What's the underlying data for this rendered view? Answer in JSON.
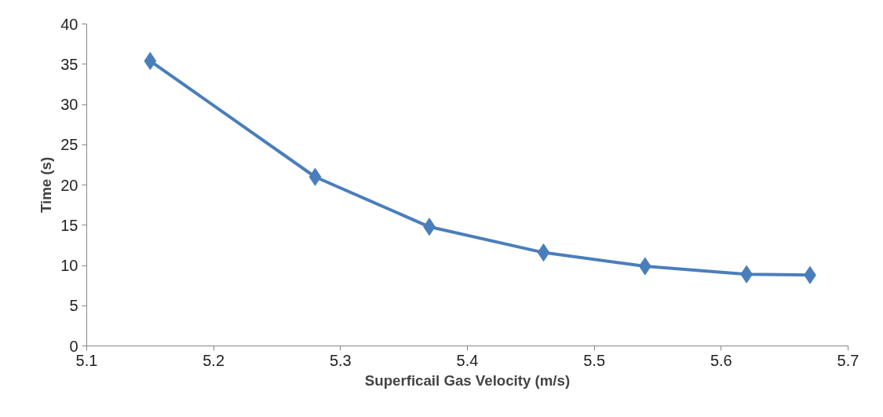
{
  "chart_data": {
    "type": "line",
    "xlabel": "Superficail Gas Velocity (m/s)",
    "ylabel": "Time (s)",
    "x": [
      5.15,
      5.28,
      5.37,
      5.46,
      5.54,
      5.62,
      5.67
    ],
    "series": [
      {
        "color": "#4a7ebb",
        "values": [
          35.4,
          21.0,
          14.8,
          11.6,
          9.9,
          8.9,
          8.8
        ]
      }
    ],
    "xlim": [
      5.1,
      5.7
    ],
    "xticks": [
      5.1,
      5.2,
      5.3,
      5.4,
      5.5,
      5.6,
      5.7
    ],
    "ylim": [
      0,
      40
    ],
    "yticks": [
      0,
      5,
      10,
      15,
      20,
      25,
      30,
      35,
      40
    ],
    "grid": false,
    "marker": "diamond",
    "line_style": "solid"
  }
}
